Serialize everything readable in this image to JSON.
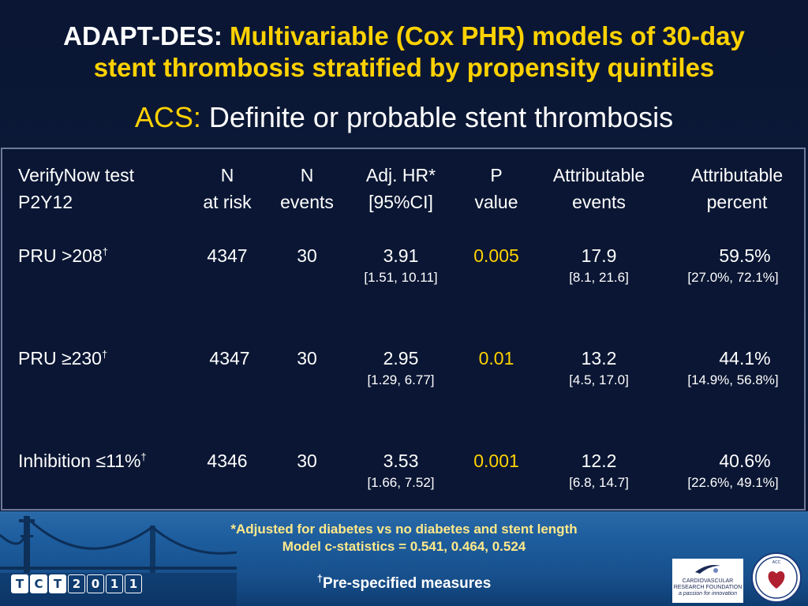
{
  "title": {
    "prefix": "ADAPT-DES: ",
    "main_line1": "Multivariable (Cox PHR) models of 30-day",
    "main_line2": "stent thrombosis stratified by propensity quintiles"
  },
  "subtitle": {
    "label": "ACS:",
    "text": " Definite or probable stent thrombosis"
  },
  "table": {
    "headers": [
      {
        "line1": "VerifyNow test",
        "line2": "P2Y12"
      },
      {
        "line1": "N",
        "line2": "at risk"
      },
      {
        "line1": "N",
        "line2": "events"
      },
      {
        "line1": "Adj. HR*",
        "line2": "[95%CI]"
      },
      {
        "line1": "P",
        "line2": "value"
      },
      {
        "line1": "Attributable",
        "line2": "events"
      },
      {
        "line1": "Attributable",
        "line2": "percent"
      }
    ],
    "rows": [
      {
        "label": "PRU >208",
        "sup": "†",
        "n_at_risk": "4347",
        "n_events": "30",
        "hr": "3.91",
        "hr_ci": "[1.51, 10.11]",
        "p": "0.005",
        "attr_events": "17.9",
        "attr_events_ci": "[8.1, 21.6]",
        "attr_pct": "59.5%",
        "attr_pct_ci": "[27.0%, 72.1%]"
      },
      {
        "label": "PRU ≥230",
        "sup": "†",
        "n_at_risk": "4347",
        "n_events": "30",
        "hr": "2.95",
        "hr_ci": "[1.29, 6.77]",
        "p": "0.01",
        "attr_events": "13.2",
        "attr_events_ci": "[4.5, 17.0]",
        "attr_pct": "44.1%",
        "attr_pct_ci": "[14.9%, 56.8%]"
      },
      {
        "label": "Inhibition ≤11%",
        "sup": "†",
        "n_at_risk": "4346",
        "n_events": "30",
        "hr": "3.53",
        "hr_ci": "[1.66, 7.52]",
        "p": "0.001",
        "attr_events": "12.2",
        "attr_events_ci": "[6.8, 14.7]",
        "attr_pct": "40.6%",
        "attr_pct_ci": "[22.6%, 49.1%]"
      }
    ]
  },
  "footnotes": {
    "line1": "*Adjusted for diabetes vs no diabetes and stent length",
    "line2": "Model c-statistics = 0.541, 0.464, 0.524",
    "pre_sup": "†",
    "pre_text": "Pre-specified measures"
  },
  "logos": {
    "tct_letters": [
      "T",
      "C",
      "T",
      "2",
      "0",
      "1",
      "1"
    ],
    "crf_line1": "CARDIOVASCULAR",
    "crf_line2": "RESEARCH FOUNDATION",
    "crf_tagline": "a passion for innovation",
    "acc_name": "AMERICAN COLLEGE of CARDIOLOGY"
  },
  "colors": {
    "background": "#0c1a3a",
    "accent_yellow": "#ffd200",
    "footer_blue": "#1d5d9e"
  }
}
